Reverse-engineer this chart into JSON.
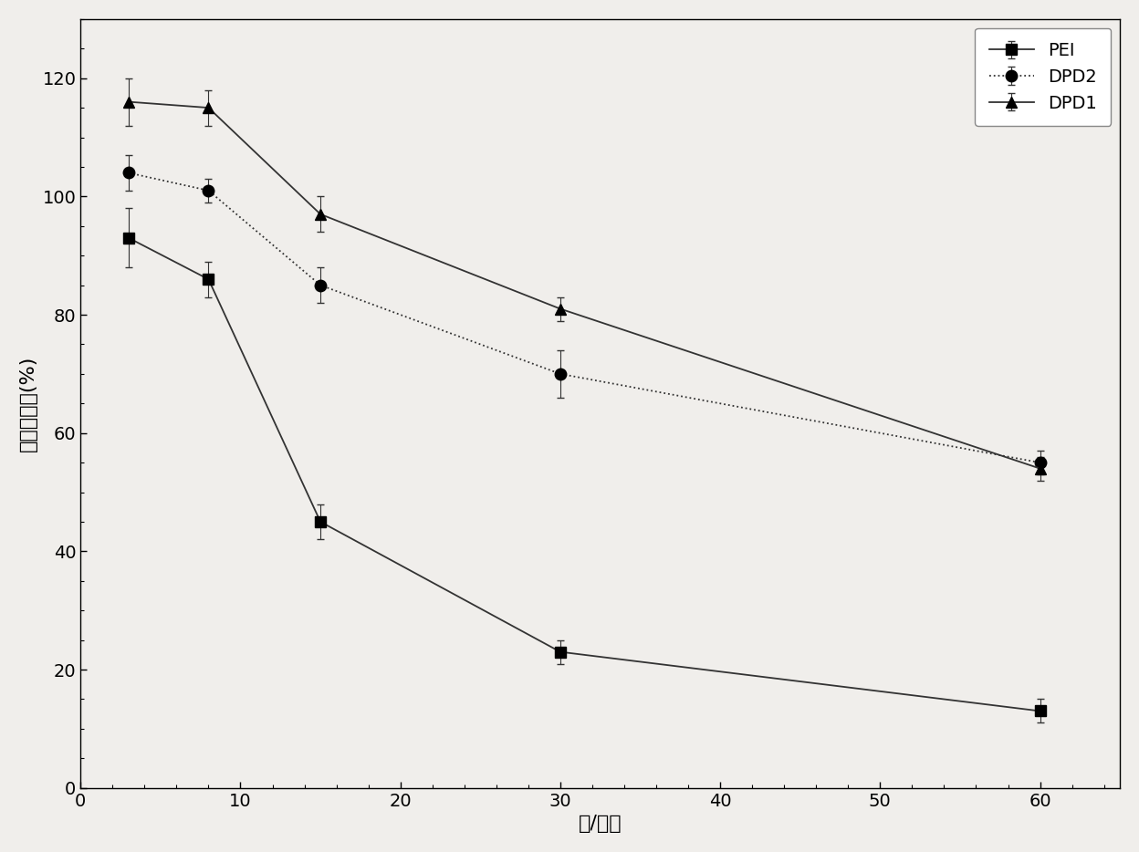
{
  "x": [
    3,
    8,
    15,
    30,
    60
  ],
  "PEI_y": [
    93,
    86,
    45,
    23,
    13
  ],
  "PEI_err": [
    5,
    3,
    3,
    2,
    2
  ],
  "DPD2_y": [
    104,
    101,
    85,
    70,
    55
  ],
  "DPD2_err": [
    3,
    2,
    3,
    4,
    2
  ],
  "DPD1_y": [
    116,
    115,
    97,
    81,
    54
  ],
  "DPD1_err": [
    4,
    3,
    3,
    2,
    2
  ],
  "xlabel": "氮/磷比",
  "ylabel": "细胞存活率(%)",
  "xlim": [
    0,
    65
  ],
  "ylim": [
    0,
    130
  ],
  "xticks": [
    0,
    10,
    20,
    30,
    40,
    50,
    60
  ],
  "yticks": [
    0,
    20,
    40,
    60,
    80,
    100,
    120
  ],
  "legend_labels": [
    "PEI",
    "DPD2",
    "DPD1"
  ],
  "line_color": "#333333",
  "marker_PEI": "s",
  "marker_DPD2": "o",
  "marker_DPD1": "^",
  "marker_size": 9,
  "linewidth": 1.3,
  "capsize": 3,
  "background_color": "#f0eeeb",
  "legend_loc": "upper right",
  "PEI_linestyle": "-",
  "DPD2_linestyle": ":",
  "DPD1_linestyle": "-"
}
